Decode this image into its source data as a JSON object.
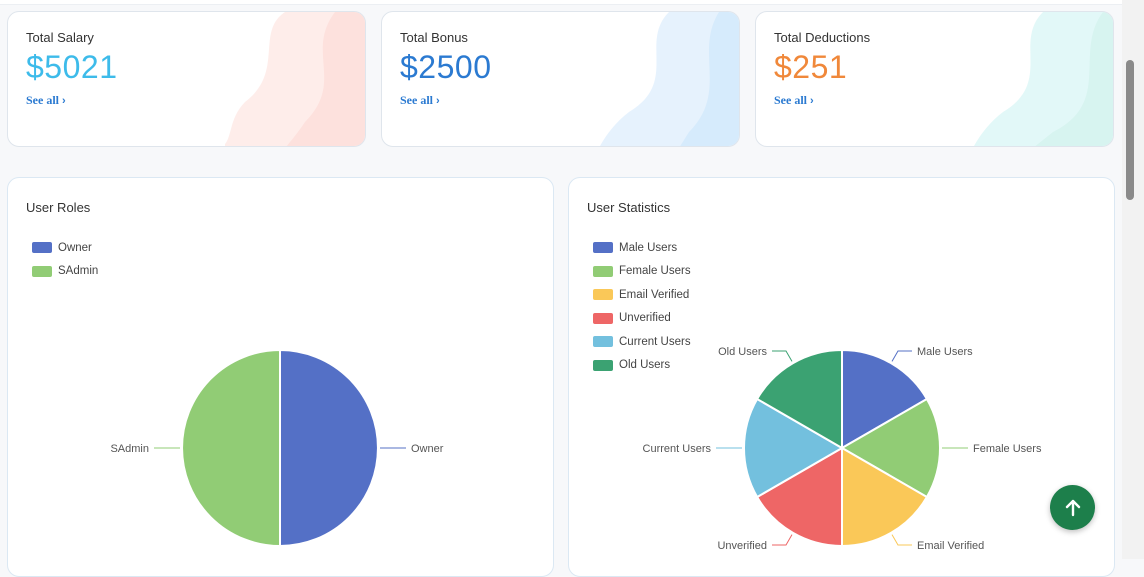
{
  "cards": [
    {
      "title": "Total Salary",
      "value": "$5021",
      "value_color": "#3dbbea",
      "link": "See all"
    },
    {
      "title": "Total Bonus",
      "value": "$2500",
      "value_color": "#2b7ad1",
      "link": "See all"
    },
    {
      "title": "Total Deductions",
      "value": "$251",
      "value_color": "#f0883a",
      "link": "See all"
    }
  ],
  "user_roles": {
    "title": "User Roles",
    "legend": [
      {
        "label": "Owner",
        "color": "#5470c6"
      },
      {
        "label": "SAdmin",
        "color": "#91cc75"
      }
    ]
  },
  "user_statistics": {
    "title": "User Statistics",
    "legend": [
      {
        "label": "Male Users",
        "color": "#5470c6"
      },
      {
        "label": "Female Users",
        "color": "#91cc75"
      },
      {
        "label": "Email Verified",
        "color": "#fac858"
      },
      {
        "label": "Unverified",
        "color": "#ee6666"
      },
      {
        "label": "Current Users",
        "color": "#73c0de"
      },
      {
        "label": "Old Users",
        "color": "#3ba272"
      }
    ]
  },
  "chart_data": [
    {
      "type": "pie",
      "title": "User Roles",
      "categories": [
        "Owner",
        "SAdmin"
      ],
      "values": [
        1,
        1
      ],
      "colors": [
        "#5470c6",
        "#91cc75"
      ],
      "legend_position": "top-left"
    },
    {
      "type": "pie",
      "title": "User Statistics",
      "categories": [
        "Male Users",
        "Female Users",
        "Email Verified",
        "Unverified",
        "Current Users",
        "Old Users"
      ],
      "values": [
        1,
        1,
        1,
        1,
        1,
        1
      ],
      "colors": [
        "#5470c6",
        "#91cc75",
        "#fac858",
        "#ee6666",
        "#73c0de",
        "#3ba272"
      ],
      "legend_position": "top-left"
    }
  ],
  "scroll_top_icon": "arrow-up-icon"
}
